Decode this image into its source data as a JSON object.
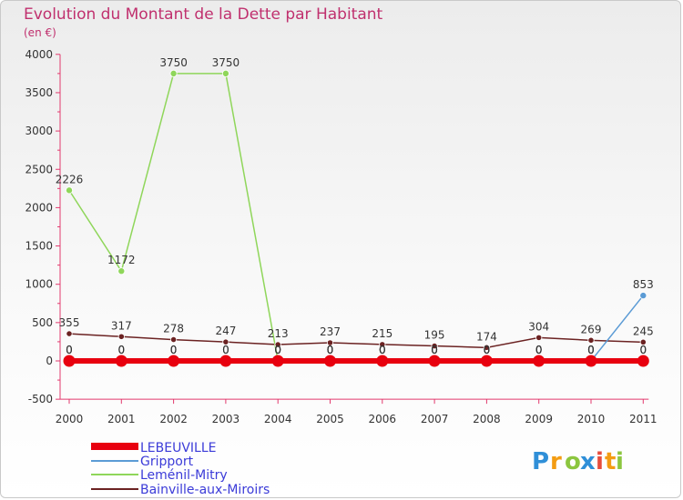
{
  "chart_data": {
    "type": "line",
    "title": "Evolution du Montant de la Dette par Habitant",
    "subtitle": "(en €)",
    "xlabel": "",
    "ylabel": "",
    "categories": [
      "2000",
      "2001",
      "2002",
      "2003",
      "2004",
      "2005",
      "2006",
      "2007",
      "2008",
      "2009",
      "2010",
      "2011"
    ],
    "ylim": [
      -500,
      4000
    ],
    "yticks": [
      -500,
      0,
      500,
      1000,
      1500,
      2000,
      2500,
      3000,
      3500,
      4000
    ],
    "grid": false,
    "legend_position": "bottom-left",
    "series": [
      {
        "name": "LEBEUVILLE",
        "color": "#e8000f",
        "values": [
          0,
          0,
          0,
          0,
          0,
          0,
          0,
          0,
          0,
          0,
          0,
          0
        ],
        "labels": [
          "0",
          "0",
          "0",
          "0",
          "0",
          "0",
          "0",
          "0",
          "0",
          "0",
          "0",
          "0"
        ]
      },
      {
        "name": "Gripport",
        "color": "#5b9bd5",
        "values": [
          0,
          0,
          0,
          0,
          0,
          0,
          0,
          0,
          0,
          0,
          0,
          853
        ],
        "labels": [
          "0",
          "0",
          "0",
          "0",
          "0",
          "0",
          "0",
          "0",
          "0",
          "0",
          "0",
          "853"
        ]
      },
      {
        "name": "Leménil-Mitry",
        "color": "#8fd65a",
        "values": [
          2226,
          1172,
          3750,
          3750,
          0,
          0,
          0,
          0,
          0,
          0,
          0,
          0
        ],
        "labels": [
          "2226",
          "1172",
          "3750",
          "3750",
          "0",
          "0",
          "0",
          "0",
          "0",
          "0",
          "0",
          "0"
        ]
      },
      {
        "name": "Bainville-aux-Miroirs",
        "color": "#6b2222",
        "values": [
          355,
          317,
          278,
          247,
          213,
          237,
          215,
          195,
          174,
          304,
          269,
          245
        ],
        "labels": [
          "355",
          "317",
          "278",
          "247",
          "213",
          "237",
          "215",
          "195",
          "174",
          "304",
          "269",
          "245"
        ]
      }
    ]
  },
  "logo": {
    "letters": [
      "P",
      "r",
      "o",
      "x",
      "i",
      "t",
      "i"
    ],
    "colors": [
      "#2f8fd8",
      "#f39c12",
      "#8cc63f",
      "#2f8fd8",
      "#e74c3c",
      "#f39c12",
      "#8cc63f"
    ]
  }
}
